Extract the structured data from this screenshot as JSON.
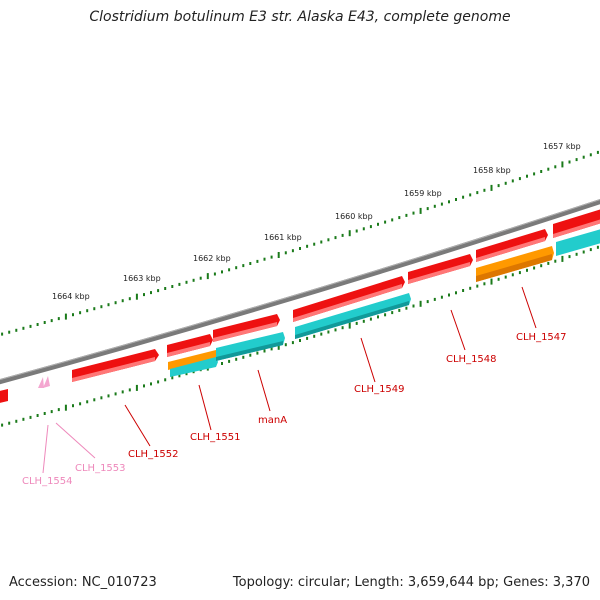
{
  "title": "Clostridium botulinum E3 str. Alaska E43, complete genome",
  "footer": {
    "accession": "Accession: NC_010723",
    "summary": "Topology: circular; Length: 3,659,644 bp; Genes: 3,370"
  },
  "colors": {
    "backbone": "#7a7a7a",
    "scale_ticks": "#1a7a1a",
    "gene_red": "#ee1111",
    "gene_cyan": "#22cccc",
    "gene_orange": "#ff9900",
    "gene_pink": "#f4a6d0",
    "label_red": "#cc0000",
    "label_pink": "#ee88bb"
  },
  "scale": {
    "unit": "kbp",
    "ticks": [
      {
        "label": "1664 kbp"
      },
      {
        "label": "1663 kbp"
      },
      {
        "label": "1662 kbp"
      },
      {
        "label": "1661 kbp"
      },
      {
        "label": "1660 kbp"
      },
      {
        "label": "1659 kbp"
      },
      {
        "label": "1658 kbp"
      },
      {
        "label": "1657 kbp"
      }
    ]
  },
  "genes": [
    {
      "label": "CLH_1554",
      "color": "pink"
    },
    {
      "label": "CLH_1553",
      "color": "pink"
    },
    {
      "label": "CLH_1552",
      "color": "red"
    },
    {
      "label": "CLH_1551",
      "color": "red"
    },
    {
      "label": "manA",
      "color": "red"
    },
    {
      "label": "CLH_1549",
      "color": "red"
    },
    {
      "label": "CLH_1548",
      "color": "red"
    },
    {
      "label": "CLH_1547",
      "color": "red"
    }
  ]
}
